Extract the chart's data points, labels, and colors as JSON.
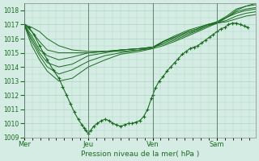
{
  "xlabel": "Pression niveau de la mer( hPa )",
  "bg_color": "#d4ece3",
  "grid_color": "#aed4c4",
  "line_color": "#1a6b20",
  "ylim": [
    1009,
    1018.5
  ],
  "yticks": [
    1009,
    1010,
    1011,
    1012,
    1013,
    1014,
    1015,
    1016,
    1017,
    1018
  ],
  "day_labels": [
    "Mer",
    "Jeu",
    "Ven",
    "Sam"
  ],
  "day_positions": [
    0.0,
    0.333,
    0.667,
    1.0
  ],
  "series": [
    {
      "points": [
        [
          0,
          1017
        ],
        [
          0.04,
          1016.8
        ],
        [
          0.08,
          1016.5
        ],
        [
          0.12,
          1016.0
        ],
        [
          0.18,
          1015.5
        ],
        [
          0.25,
          1015.2
        ],
        [
          0.333,
          1015.1
        ],
        [
          0.42,
          1015.1
        ],
        [
          0.5,
          1015.1
        ],
        [
          0.6,
          1015.2
        ],
        [
          0.667,
          1015.3
        ],
        [
          0.72,
          1015.5
        ],
        [
          0.78,
          1015.8
        ],
        [
          0.85,
          1016.2
        ],
        [
          0.9,
          1016.5
        ],
        [
          0.95,
          1016.8
        ],
        [
          1.0,
          1017.1
        ],
        [
          1.05,
          1017.5
        ],
        [
          1.1,
          1018.0
        ],
        [
          1.15,
          1018.3
        ],
        [
          1.2,
          1018.5
        ]
      ],
      "has_markers": false
    },
    {
      "points": [
        [
          0,
          1017
        ],
        [
          0.04,
          1016.5
        ],
        [
          0.08,
          1015.8
        ],
        [
          0.12,
          1015.2
        ],
        [
          0.18,
          1015.0
        ],
        [
          0.25,
          1015.0
        ],
        [
          0.333,
          1015.0
        ],
        [
          0.42,
          1015.1
        ],
        [
          0.5,
          1015.2
        ],
        [
          0.6,
          1015.3
        ],
        [
          0.667,
          1015.4
        ],
        [
          0.72,
          1015.6
        ],
        [
          0.78,
          1015.9
        ],
        [
          0.85,
          1016.3
        ],
        [
          0.9,
          1016.6
        ],
        [
          0.95,
          1016.9
        ],
        [
          1.0,
          1017.2
        ],
        [
          1.05,
          1017.6
        ],
        [
          1.1,
          1018.1
        ],
        [
          1.15,
          1018.3
        ],
        [
          1.2,
          1018.4
        ]
      ],
      "has_markers": false
    },
    {
      "points": [
        [
          0,
          1017
        ],
        [
          0.04,
          1016.2
        ],
        [
          0.08,
          1015.2
        ],
        [
          0.12,
          1014.8
        ],
        [
          0.18,
          1014.5
        ],
        [
          0.25,
          1014.7
        ],
        [
          0.333,
          1015.0
        ],
        [
          0.42,
          1015.1
        ],
        [
          0.5,
          1015.2
        ],
        [
          0.6,
          1015.3
        ],
        [
          0.667,
          1015.4
        ],
        [
          0.72,
          1015.7
        ],
        [
          0.78,
          1016.0
        ],
        [
          0.85,
          1016.4
        ],
        [
          0.9,
          1016.6
        ],
        [
          0.95,
          1016.9
        ],
        [
          1.0,
          1017.1
        ],
        [
          1.05,
          1017.5
        ],
        [
          1.1,
          1017.9
        ],
        [
          1.15,
          1018.1
        ],
        [
          1.2,
          1018.2
        ]
      ],
      "has_markers": false
    },
    {
      "points": [
        [
          0,
          1017
        ],
        [
          0.04,
          1016.0
        ],
        [
          0.08,
          1015.0
        ],
        [
          0.12,
          1014.3
        ],
        [
          0.18,
          1014.0
        ],
        [
          0.25,
          1014.2
        ],
        [
          0.333,
          1014.8
        ],
        [
          0.42,
          1015.0
        ],
        [
          0.5,
          1015.2
        ],
        [
          0.6,
          1015.3
        ],
        [
          0.667,
          1015.4
        ],
        [
          0.72,
          1015.8
        ],
        [
          0.78,
          1016.1
        ],
        [
          0.85,
          1016.5
        ],
        [
          0.9,
          1016.7
        ],
        [
          0.95,
          1017.0
        ],
        [
          1.0,
          1017.2
        ],
        [
          1.05,
          1017.5
        ],
        [
          1.1,
          1017.8
        ],
        [
          1.15,
          1018.0
        ],
        [
          1.2,
          1018.1
        ]
      ],
      "has_markers": false
    },
    {
      "points": [
        [
          0,
          1017
        ],
        [
          0.04,
          1015.8
        ],
        [
          0.08,
          1014.8
        ],
        [
          0.12,
          1014.0
        ],
        [
          0.18,
          1013.5
        ],
        [
          0.25,
          1013.8
        ],
        [
          0.333,
          1014.4
        ],
        [
          0.42,
          1014.8
        ],
        [
          0.5,
          1015.0
        ],
        [
          0.6,
          1015.2
        ],
        [
          0.667,
          1015.4
        ],
        [
          0.72,
          1015.8
        ],
        [
          0.78,
          1016.1
        ],
        [
          0.85,
          1016.5
        ],
        [
          0.9,
          1016.7
        ],
        [
          0.95,
          1017.0
        ],
        [
          1.0,
          1017.1
        ],
        [
          1.05,
          1017.3
        ],
        [
          1.1,
          1017.6
        ],
        [
          1.15,
          1017.8
        ],
        [
          1.2,
          1017.9
        ]
      ],
      "has_markers": false
    },
    {
      "points": [
        [
          0,
          1017
        ],
        [
          0.04,
          1015.5
        ],
        [
          0.08,
          1014.5
        ],
        [
          0.12,
          1013.7
        ],
        [
          0.18,
          1013.0
        ],
        [
          0.25,
          1013.2
        ],
        [
          0.333,
          1014.0
        ],
        [
          0.42,
          1014.5
        ],
        [
          0.5,
          1014.9
        ],
        [
          0.6,
          1015.1
        ],
        [
          0.667,
          1015.3
        ],
        [
          0.72,
          1015.8
        ],
        [
          0.78,
          1016.2
        ],
        [
          0.85,
          1016.6
        ],
        [
          0.9,
          1016.8
        ],
        [
          0.95,
          1017.0
        ],
        [
          1.0,
          1017.1
        ],
        [
          1.05,
          1017.2
        ],
        [
          1.1,
          1017.4
        ],
        [
          1.15,
          1017.6
        ],
        [
          1.2,
          1017.7
        ]
      ],
      "has_markers": false
    },
    {
      "points": [
        [
          0,
          1017
        ],
        [
          0.025,
          1016.8
        ],
        [
          0.05,
          1016.3
        ],
        [
          0.08,
          1015.5
        ],
        [
          0.1,
          1015.0
        ],
        [
          0.12,
          1014.5
        ],
        [
          0.15,
          1013.8
        ],
        [
          0.18,
          1013.2
        ],
        [
          0.2,
          1012.6
        ],
        [
          0.22,
          1012.0
        ],
        [
          0.24,
          1011.4
        ],
        [
          0.26,
          1010.8
        ],
        [
          0.28,
          1010.3
        ],
        [
          0.3,
          1009.9
        ],
        [
          0.31,
          1009.7
        ],
        [
          0.32,
          1009.5
        ],
        [
          0.333,
          1009.3
        ],
        [
          0.345,
          1009.5
        ],
        [
          0.36,
          1009.8
        ],
        [
          0.38,
          1010.0
        ],
        [
          0.4,
          1010.2
        ],
        [
          0.42,
          1010.3
        ],
        [
          0.44,
          1010.2
        ],
        [
          0.46,
          1010.0
        ],
        [
          0.48,
          1009.9
        ],
        [
          0.5,
          1009.8
        ],
        [
          0.52,
          1009.9
        ],
        [
          0.54,
          1010.0
        ],
        [
          0.56,
          1010.0
        ],
        [
          0.58,
          1010.1
        ],
        [
          0.6,
          1010.2
        ],
        [
          0.62,
          1010.5
        ],
        [
          0.64,
          1011.0
        ],
        [
          0.66,
          1011.8
        ],
        [
          0.667,
          1012.0
        ],
        [
          0.68,
          1012.5
        ],
        [
          0.7,
          1013.0
        ],
        [
          0.72,
          1013.3
        ],
        [
          0.74,
          1013.7
        ],
        [
          0.76,
          1014.0
        ],
        [
          0.78,
          1014.3
        ],
        [
          0.8,
          1014.6
        ],
        [
          0.82,
          1014.9
        ],
        [
          0.84,
          1015.1
        ],
        [
          0.86,
          1015.3
        ],
        [
          0.88,
          1015.4
        ],
        [
          0.9,
          1015.5
        ],
        [
          0.92,
          1015.7
        ],
        [
          0.94,
          1015.9
        ],
        [
          0.96,
          1016.1
        ],
        [
          0.98,
          1016.3
        ],
        [
          1.0,
          1016.5
        ],
        [
          1.02,
          1016.7
        ],
        [
          1.04,
          1016.8
        ],
        [
          1.06,
          1017.0
        ],
        [
          1.08,
          1017.1
        ],
        [
          1.1,
          1017.1
        ],
        [
          1.12,
          1017.0
        ],
        [
          1.14,
          1016.9
        ],
        [
          1.16,
          1016.8
        ]
      ],
      "has_markers": true
    }
  ]
}
